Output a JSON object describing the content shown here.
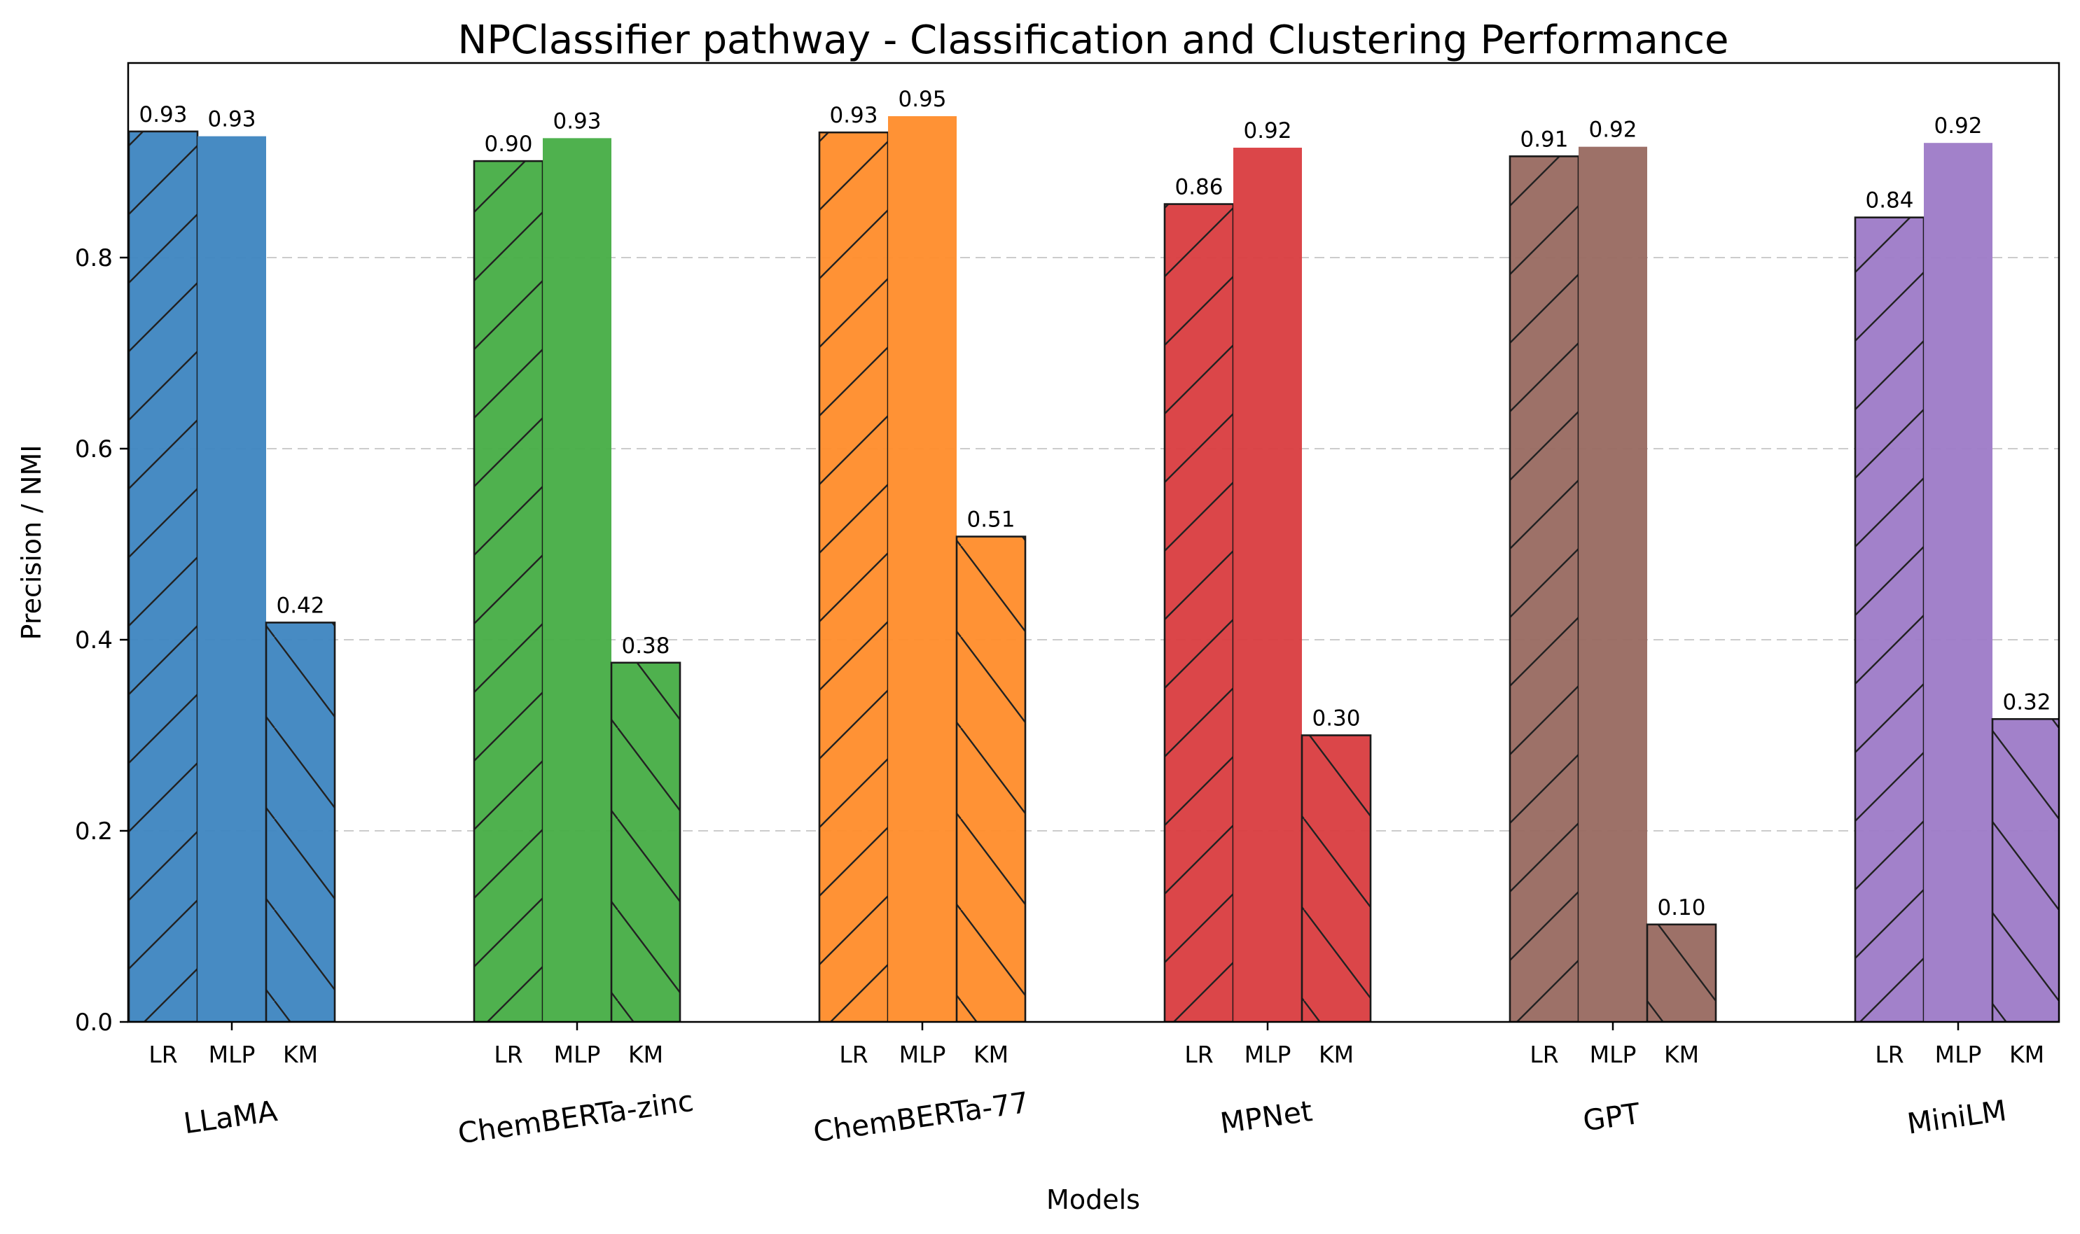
{
  "chart_data": {
    "type": "bar",
    "title": "NPClassifier pathway - Classification and Clustering Performance",
    "xlabel": "Models",
    "ylabel": "Precision / NMI",
    "ylim": [
      0,
      1.0
    ],
    "yticks": [
      "0.0",
      "0.2",
      "0.4",
      "0.6",
      "0.8"
    ],
    "grid": "horizontal dashed",
    "methods": [
      "LR",
      "MLP",
      "KM"
    ],
    "categories": [
      "LLaMA",
      "ChemBERTa-zinc",
      "ChemBERTa-77",
      "MPNet",
      "GPT",
      "MiniLM"
    ],
    "colors": [
      "#3d85c0",
      "#46ad45",
      "#ff8c2a",
      "#d93c3f",
      "#986960",
      "#9d7ac7"
    ],
    "values": [
      [
        0.932,
        0.927,
        0.418
      ],
      [
        0.901,
        0.925,
        0.376
      ],
      [
        0.931,
        0.948,
        0.508
      ],
      [
        0.856,
        0.915,
        0.3
      ],
      [
        0.906,
        0.916,
        0.102
      ],
      [
        0.842,
        0.92,
        0.317
      ]
    ],
    "labels": [
      [
        "0.93",
        "0.93",
        "0.42"
      ],
      [
        "0.90",
        "0.93",
        "0.38"
      ],
      [
        "0.93",
        "0.95",
        "0.51"
      ],
      [
        "0.86",
        "0.92",
        "0.30"
      ],
      [
        "0.91",
        "0.92",
        "0.10"
      ],
      [
        "0.84",
        "0.92",
        "0.32"
      ]
    ]
  }
}
